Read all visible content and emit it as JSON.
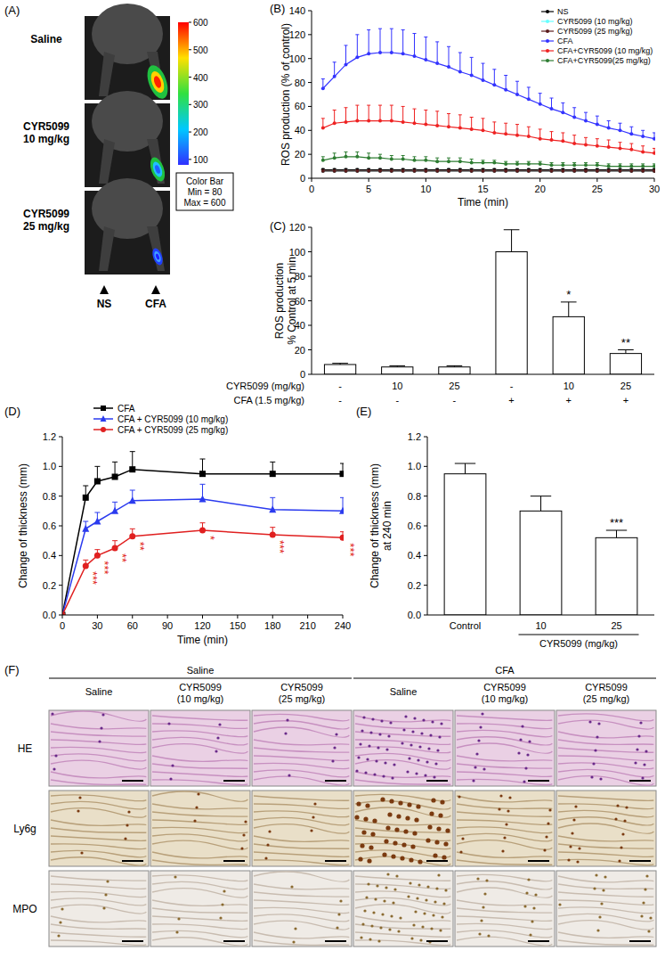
{
  "chart_data": [
    {
      "type": "line",
      "panel": "(B)",
      "xlabel": "Time (min)",
      "ylabel": "ROS production (% of control)",
      "x": [
        1,
        2,
        3,
        4,
        5,
        6,
        7,
        8,
        9,
        10,
        11,
        12,
        13,
        14,
        15,
        16,
        17,
        18,
        19,
        20,
        21,
        22,
        23,
        24,
        25,
        26,
        27,
        28,
        29,
        30
      ],
      "xlim": [
        0,
        30
      ],
      "xticks": [
        0,
        5,
        10,
        15,
        20,
        25,
        30
      ],
      "ylim": [
        0,
        140
      ],
      "yticks": [
        0,
        20,
        40,
        60,
        80,
        100,
        120,
        140
      ],
      "legend": "upper-right",
      "marker": "circle",
      "series": [
        {
          "name": "NS",
          "color": "#000000",
          "values": [
            7,
            7,
            7,
            7,
            7,
            7,
            7,
            7,
            7,
            7,
            7,
            7,
            7,
            7,
            7,
            7,
            7,
            7,
            7,
            7,
            7,
            7,
            7,
            7,
            7,
            7,
            7,
            7,
            7,
            7
          ],
          "errors": [
            1,
            1,
            1,
            1,
            1,
            1,
            1,
            1,
            1,
            1,
            1,
            1,
            1,
            1,
            1,
            1,
            1,
            1,
            1,
            1,
            1,
            1,
            1,
            1,
            1,
            1,
            1,
            1,
            1,
            1
          ]
        },
        {
          "name": "CYR5099 (10 mg/kg)",
          "color": "#66ffff",
          "values": [
            6,
            6,
            6,
            6,
            6,
            6,
            6,
            6,
            6,
            6,
            6,
            6,
            6,
            6,
            6,
            6,
            6,
            6,
            6,
            6,
            6,
            6,
            6,
            6,
            6,
            6,
            6,
            6,
            6,
            6
          ],
          "errors": [
            1,
            1,
            1,
            1,
            1,
            1,
            1,
            1,
            1,
            1,
            1,
            1,
            1,
            1,
            1,
            1,
            1,
            1,
            1,
            1,
            1,
            1,
            1,
            1,
            1,
            1,
            1,
            1,
            1,
            1
          ]
        },
        {
          "name": "CYR5099 (25 mg/kg)",
          "color": "#5a1a1a",
          "values": [
            6,
            6,
            6,
            6,
            6,
            6,
            6,
            6,
            6,
            6,
            6,
            6,
            6,
            6,
            6,
            6,
            6,
            6,
            6,
            6,
            6,
            6,
            6,
            6,
            6,
            6,
            6,
            6,
            6,
            6
          ],
          "errors": [
            1,
            1,
            1,
            1,
            1,
            1,
            1,
            1,
            1,
            1,
            1,
            1,
            1,
            1,
            1,
            1,
            1,
            1,
            1,
            1,
            1,
            1,
            1,
            1,
            1,
            1,
            1,
            1,
            1,
            1
          ]
        },
        {
          "name": "CFA",
          "color": "#3333ff",
          "values": [
            75,
            85,
            95,
            101,
            104,
            105,
            105,
            104,
            102,
            99,
            96,
            93,
            89,
            86,
            82,
            78,
            74,
            70,
            66,
            62,
            58,
            55,
            51,
            48,
            45,
            42,
            40,
            37,
            35,
            33
          ],
          "errors": [
            8,
            12,
            16,
            19,
            20,
            20,
            20,
            20,
            19,
            19,
            18,
            17,
            16,
            15,
            14,
            13,
            12,
            11,
            10,
            9,
            9,
            8,
            8,
            7,
            7,
            6,
            6,
            6,
            5,
            5
          ]
        },
        {
          "name": "CFA+CYR5099 (10 mg/kg)",
          "color": "#ee2222",
          "values": [
            42,
            46,
            47,
            48,
            48,
            48,
            48,
            47,
            46,
            45,
            44,
            43,
            42,
            41,
            40,
            38,
            37,
            36,
            35,
            33,
            32,
            31,
            29,
            28,
            27,
            26,
            25,
            24,
            22,
            21
          ],
          "errors": [
            8,
            11,
            12,
            13,
            13,
            13,
            13,
            13,
            12,
            12,
            12,
            11,
            11,
            10,
            10,
            9,
            9,
            9,
            8,
            8,
            7,
            7,
            7,
            6,
            6,
            6,
            5,
            5,
            5,
            4
          ]
        },
        {
          "name": "CFA+CYR5099(25 mg/kg)",
          "color": "#2e7d32",
          "values": [
            15,
            17,
            18,
            18,
            17,
            17,
            16,
            16,
            15,
            15,
            14,
            14,
            14,
            13,
            13,
            13,
            12,
            12,
            12,
            12,
            11,
            11,
            11,
            11,
            11,
            10,
            10,
            10,
            10,
            10
          ],
          "errors": [
            3,
            4,
            4,
            4,
            4,
            3,
            3,
            3,
            3,
            3,
            3,
            3,
            3,
            3,
            2,
            2,
            2,
            2,
            2,
            2,
            2,
            2,
            2,
            2,
            2,
            2,
            2,
            2,
            2,
            2
          ]
        }
      ]
    },
    {
      "type": "bar",
      "panel": "(C)",
      "ylabel": [
        "ROS production",
        "% Control at 5 min"
      ],
      "categories": [
        null,
        null,
        null,
        null,
        null,
        null
      ],
      "values": [
        8,
        6,
        6,
        100,
        47,
        17
      ],
      "errors": [
        1,
        1,
        1,
        18,
        12,
        3
      ],
      "significance": [
        null,
        null,
        null,
        null,
        "*",
        "**"
      ],
      "table_rows": [
        {
          "label": "CYR5099 (mg/kg)",
          "values": [
            "-",
            "10",
            "25",
            "-",
            "10",
            "25"
          ]
        },
        {
          "label": "CFA (1.5 mg/kg)",
          "values": [
            "-",
            "-",
            "-",
            "+",
            "+",
            "+"
          ]
        }
      ],
      "color": "#ffffff",
      "ylim": [
        0,
        120
      ],
      "yticks": [
        0,
        20,
        40,
        60,
        80,
        100,
        120
      ]
    },
    {
      "type": "line",
      "panel": "(D)",
      "xlabel": "Time (min)",
      "ylabel": "Change of thickness (mm)",
      "x": [
        0,
        20,
        30,
        45,
        60,
        120,
        180,
        240
      ],
      "xlim": [
        0,
        240
      ],
      "xticks": [
        0,
        30,
        60,
        90,
        120,
        150,
        180,
        210,
        240
      ],
      "ylim": [
        0,
        1.2
      ],
      "yticks": [
        {
          "value": 0,
          "label": "0.0"
        },
        0.2,
        0.4,
        0.6,
        0.8,
        {
          "value": 1,
          "label": "1.0"
        },
        1.2
      ],
      "legend": "upper-left",
      "series": [
        {
          "name": "CFA",
          "color": "#000000",
          "marker": "square",
          "values": [
            0,
            0.79,
            0.9,
            0.93,
            0.98,
            0.95,
            0.95,
            0.95
          ],
          "errors": [
            0,
            0.08,
            0.1,
            0.1,
            0.12,
            0.1,
            0.08,
            0.07
          ]
        },
        {
          "name": "CFA + CYR5099 (10 mg/kg)",
          "color": "#2b3bef",
          "marker": "triangle",
          "values": [
            0,
            0.58,
            0.63,
            0.7,
            0.77,
            0.78,
            0.71,
            0.7
          ],
          "errors": [
            0,
            0.05,
            0.06,
            0.06,
            0.07,
            0.1,
            0.08,
            0.09
          ]
        },
        {
          "name": "CFA + CYR5099 (25 mg/kg)",
          "color": "#e02020",
          "marker": "circle",
          "values": [
            0,
            0.33,
            0.4,
            0.45,
            0.53,
            0.57,
            0.54,
            0.52
          ],
          "errors": [
            0,
            0.04,
            0.04,
            0.05,
            0.05,
            0.05,
            0.05,
            0.04
          ],
          "significance": [
            null,
            "***",
            "***",
            "**",
            "**",
            "*",
            "***",
            "***"
          ]
        }
      ]
    },
    {
      "type": "bar",
      "panel": "(E)",
      "ylabel": [
        "Change of thickness (mm)",
        "at 240 min"
      ],
      "categories": [
        "Control",
        "10",
        "25"
      ],
      "values": [
        0.95,
        0.7,
        0.52
      ],
      "errors": [
        0.07,
        0.1,
        0.05
      ],
      "significance": [
        null,
        null,
        "***"
      ],
      "group_label": "CYR5099 (mg/kg)",
      "color": "#ffffff",
      "ylim": [
        0,
        1.2
      ],
      "yticks": [
        {
          "value": 0,
          "label": "0.0"
        },
        0.2,
        0.4,
        0.6,
        0.8,
        {
          "value": 1,
          "label": "1.0"
        },
        1.2
      ]
    }
  ],
  "panel_a": {
    "label": "(A)",
    "rows": [
      [
        "Saline"
      ],
      [
        "CYR5099",
        "10 mg/kg"
      ],
      [
        "CYR5099",
        "25 mg/kg"
      ]
    ],
    "colorbar": {
      "range": [
        80,
        600
      ],
      "ticks": [
        100,
        200,
        300,
        400,
        500,
        600
      ],
      "title": "Color Bar",
      "min_label": "Min = 80",
      "max_label": "Max = 600"
    },
    "paw_labels": [
      "NS",
      "CFA"
    ]
  },
  "panel_f": {
    "label": "(F)",
    "groups": [
      "Saline",
      "CFA"
    ],
    "columns": [
      [
        "Saline"
      ],
      [
        "CYR5099",
        "(10 mg/kg)"
      ],
      [
        "CYR5099",
        "(25 mg/kg)"
      ],
      [
        "Saline"
      ],
      [
        "CYR5099",
        "(10 mg/kg)"
      ],
      [
        "CYR5099",
        "(25 mg/kg)"
      ]
    ],
    "rows": [
      "HE",
      "Ly6g",
      "MPO"
    ]
  }
}
